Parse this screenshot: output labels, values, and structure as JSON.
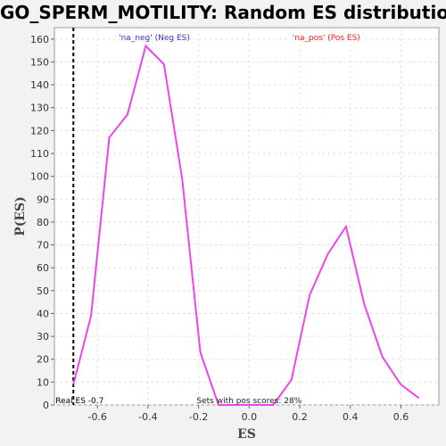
{
  "chart_data": {
    "type": "line",
    "title": "GO_SPERM_MOTILITY: Random ES distribution",
    "xlabel": "ES",
    "ylabel": "P(ES)",
    "xlim": [
      -0.77,
      0.75
    ],
    "ylim": [
      0,
      165
    ],
    "x_ticks": [
      -0.6,
      -0.4,
      -0.2,
      0.0,
      0.2,
      0.4,
      0.6
    ],
    "x_tick_labels": [
      "-0.6",
      "-0.4",
      "-0.2",
      "0.0",
      "0.2",
      "0.4",
      "0.6"
    ],
    "y_ticks": [
      0,
      10,
      20,
      30,
      40,
      50,
      60,
      70,
      80,
      90,
      100,
      110,
      120,
      130,
      140,
      150,
      160
    ],
    "y_tick_labels": [
      "0",
      "10",
      "20",
      "30",
      "40",
      "50",
      "60",
      "70",
      "80",
      "90",
      "100",
      "110",
      "120",
      "130",
      "140",
      "150",
      "160"
    ],
    "grid": true,
    "series": [
      {
        "color": "#ee44ee",
        "x": [
          -0.695,
          -0.625,
          -0.553,
          -0.481,
          -0.409,
          -0.337,
          -0.265,
          -0.193,
          -0.121,
          -0.049,
          0.023,
          0.095,
          0.167,
          0.239,
          0.311,
          0.383,
          0.455,
          0.527,
          0.599,
          0.671
        ],
        "y": [
          9,
          39,
          117,
          127,
          157,
          149,
          99,
          23,
          0,
          0,
          0,
          0,
          11,
          48,
          66,
          78,
          44,
          21,
          9,
          3
        ]
      }
    ],
    "real_es": {
      "x": -0.695,
      "label": "Real ES -0.7",
      "color": "#000000"
    },
    "annotations": {
      "neg": {
        "text": "'na_neg' (Neg ES)",
        "color": "#3333cc"
      },
      "pos": {
        "text": "'na_pos' (Pos ES)",
        "color": "#ee2222"
      },
      "pos_scores": {
        "text": "Sets with pos scores: 28%",
        "color": "#222222"
      }
    }
  }
}
